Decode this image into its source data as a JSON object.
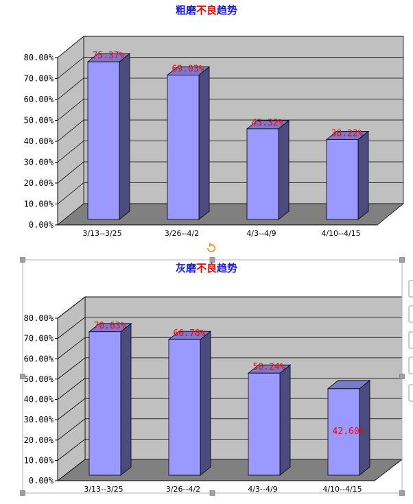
{
  "colors": {
    "title_blue": "#1a1aff",
    "title_red": "#ff0000",
    "data_label": "#ff0000",
    "bar_front": "#9999ff",
    "bar_side": "#4b4b7f",
    "bar_top": "#7a7acc",
    "wall": "#c0c0c0",
    "floor": "#808080",
    "handle": "#a0a0a0",
    "rotate_handle": "#f0a030"
  },
  "chart_data": [
    {
      "type": "bar",
      "title_parts": [
        "粗磨",
        "不良",
        "趋势"
      ],
      "categories": [
        "3/13--3/25",
        "3/26--4/2",
        "4/3--4/9",
        "4/10--4/15"
      ],
      "values": [
        75.37,
        69.03,
        43.32,
        38.22
      ],
      "data_labels": [
        "75.37%",
        "69.03%",
        "43.32%",
        "38.22%"
      ],
      "ylim": [
        0,
        80
      ],
      "yticks": [
        "0.00%",
        "10.00%",
        "20.00%",
        "30.00%",
        "40.00%",
        "50.00%",
        "60.00%",
        "70.00%",
        "80.00%"
      ],
      "grid": true,
      "legend": "none"
    },
    {
      "type": "bar",
      "title_parts": [
        "灰磨",
        "不良",
        "趋势"
      ],
      "categories": [
        "3/13--3/25",
        "3/26--4/2",
        "4/3--4/9",
        "4/10--4/15"
      ],
      "values": [
        70.63,
        66.78,
        50.24,
        42.6
      ],
      "data_labels": [
        "70.63%",
        "66.78%",
        "50.24%",
        "42.60%"
      ],
      "ylim": [
        0,
        80
      ],
      "yticks": [
        "0.00%",
        "10.00%",
        "20.00%",
        "30.00%",
        "40.00%",
        "50.00%",
        "60.00%",
        "70.00%",
        "80.00%"
      ],
      "grid": true,
      "legend": "none"
    }
  ]
}
